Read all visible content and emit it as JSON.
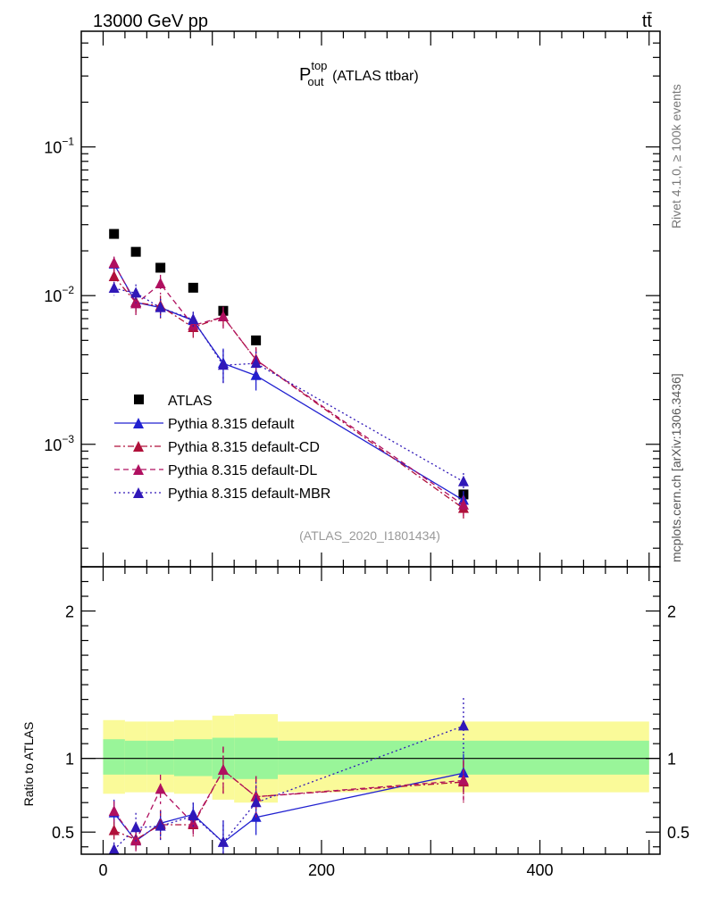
{
  "header": {
    "energy_label": "13000 GeV pp",
    "process_label": "tt̄"
  },
  "side_labels": {
    "rivet": "Rivet 4.1.0, ≥ 100k events",
    "source": "mcplots.cern.ch [arXiv:1306.3436]"
  },
  "chart_data": [
    {
      "id": "main",
      "type": "scatter",
      "title_main": "P",
      "title_sup": "top",
      "title_sub": "out",
      "title_rest": "(ATLAS ttbar)",
      "analysis_tag": "(ATLAS_2020_I1801434)",
      "yscale": "log",
      "ylim": [
        0.00015,
        0.6
      ],
      "xlim": [
        -20,
        510
      ],
      "y_tick_labels": [
        {
          "base": "10",
          "exp": "−1",
          "value": 0.1
        },
        {
          "base": "10",
          "exp": "−2",
          "value": 0.01
        },
        {
          "base": "10",
          "exp": "−3",
          "value": 0.001
        }
      ],
      "x": [
        10,
        30,
        52.5,
        82.5,
        110,
        140,
        330
      ],
      "series": [
        {
          "name": "ATLAS",
          "color": "#000000",
          "marker": "square",
          "line": "none",
          "values": [
            0.026,
            0.0197,
            0.0154,
            0.0113,
            0.0079,
            0.005,
            0.00046
          ]
        },
        {
          "name": "Pythia 8.315 default",
          "color": "#2020d0",
          "marker": "triangle",
          "line": "solid",
          "values": [
            0.0163,
            0.009,
            0.0083,
            0.0068,
            0.0035,
            0.0029,
            0.00042
          ],
          "err": [
            0.0018,
            0.0012,
            0.0012,
            0.0009,
            0.0009,
            0.0006,
            6e-05
          ]
        },
        {
          "name": "Pythia 8.315 default-CD",
          "color": "#b0103a",
          "marker": "triangle",
          "line": "dashdot",
          "values": [
            0.0134,
            0.009,
            0.0085,
            0.0061,
            0.0072,
            0.0037,
            0.00037
          ],
          "err": [
            0.0017,
            0.0014,
            0.0015,
            0.0009,
            0.0012,
            0.0008,
            6e-05
          ]
        },
        {
          "name": "Pythia 8.315 default-DL",
          "color": "#b01060",
          "marker": "triangle",
          "line": "dashed",
          "values": [
            0.0165,
            0.0088,
            0.012,
            0.0063,
            0.0072,
            0.0037,
            0.00039
          ],
          "err": [
            0.0018,
            0.0014,
            0.0018,
            0.0009,
            0.0012,
            0.0007,
            6e-05
          ]
        },
        {
          "name": "Pythia 8.315 default-MBR",
          "color": "#3018b8",
          "marker": "triangle",
          "line": "dotted",
          "values": [
            0.0112,
            0.0104,
            0.0083,
            0.0069,
            0.0034,
            0.0035,
            0.00056
          ],
          "err": [
            0.0012,
            0.0015,
            0.0012,
            0.0009,
            0.0009,
            0.0007,
            8e-05
          ]
        }
      ]
    },
    {
      "id": "ratio",
      "type": "scatter",
      "ylabel": "Ratio to ATLAS",
      "ylim": [
        0.35,
        2.3
      ],
      "xlim": [
        -20,
        510
      ],
      "x_tick_labels": [
        "0",
        "200",
        "400"
      ],
      "x_tick_values": [
        0,
        200,
        400
      ],
      "y_tick_labels": [
        "2",
        "1",
        "0.5"
      ],
      "y_tick_values": [
        2,
        1,
        0.5
      ],
      "bands": {
        "edges": [
          0,
          20,
          40,
          65,
          100,
          120,
          160,
          500
        ],
        "inner_lo": [
          0.89,
          0.89,
          0.89,
          0.88,
          0.86,
          0.86,
          0.89
        ],
        "inner_hi": [
          1.13,
          1.12,
          1.12,
          1.13,
          1.14,
          1.14,
          1.12
        ],
        "outer_lo": [
          0.76,
          0.77,
          0.77,
          0.76,
          0.72,
          0.7,
          0.77
        ],
        "outer_hi": [
          1.26,
          1.25,
          1.25,
          1.26,
          1.29,
          1.3,
          1.25
        ],
        "inner_color": "#99f599",
        "outer_color": "#fafa99"
      },
      "x": [
        10,
        30,
        52.5,
        82.5,
        110,
        140,
        330
      ],
      "series": [
        {
          "name": "Pythia 8.315 default",
          "color": "#2020d0",
          "line": "solid",
          "values": [
            0.63,
            0.44,
            0.56,
            0.62,
            0.43,
            0.6,
            0.9
          ],
          "err": [
            0.09,
            0.06,
            0.09,
            0.08,
            0.14,
            0.12,
            0.13
          ]
        },
        {
          "name": "Pythia 8.315 default-CD",
          "color": "#b0103a",
          "line": "dashdot",
          "values": [
            0.51,
            0.45,
            0.55,
            0.55,
            0.92,
            0.74,
            0.84
          ],
          "err": [
            0.06,
            0.07,
            0.1,
            0.08,
            0.16,
            0.14,
            0.14
          ]
        },
        {
          "name": "Pythia 8.315 default-DL",
          "color": "#b01060",
          "line": "dashed",
          "values": [
            0.64,
            0.44,
            0.79,
            0.56,
            0.92,
            0.74,
            0.85
          ],
          "err": [
            0.07,
            0.07,
            0.1,
            0.08,
            0.16,
            0.14,
            0.14
          ]
        },
        {
          "name": "Pythia 8.315 default-MBR",
          "color": "#3018b8",
          "line": "dotted",
          "values": [
            0.38,
            0.53,
            0.54,
            0.61,
            0.43,
            0.7,
            1.22
          ],
          "err": [
            0.05,
            0.1,
            0.1,
            0.09,
            0.15,
            0.14,
            0.19
          ]
        }
      ]
    }
  ]
}
